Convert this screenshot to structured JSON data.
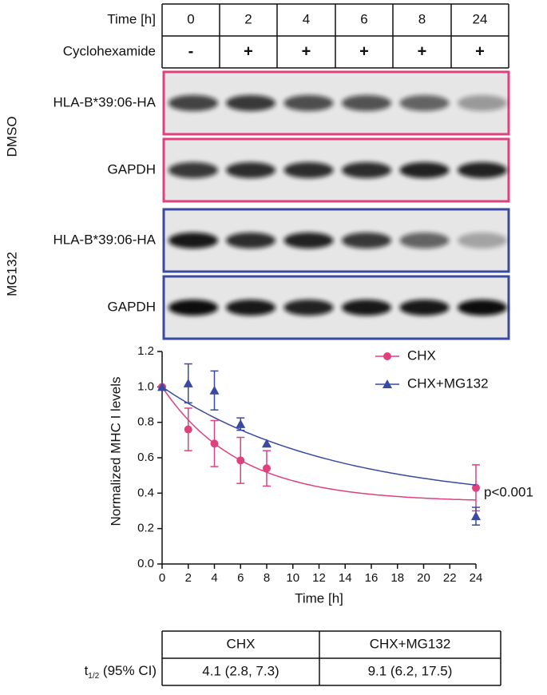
{
  "blot": {
    "time_label": "Time [h]",
    "times": [
      "0",
      "2",
      "4",
      "6",
      "8",
      "24"
    ],
    "treatment_label": "Cyclohexamide",
    "treatments": [
      "-",
      "+",
      "+",
      "+",
      "+",
      "+"
    ],
    "groups": [
      {
        "name": "DMSO",
        "rows": [
          "HLA-B*39:06-HA",
          "GAPDH"
        ]
      },
      {
        "name": "MG132",
        "rows": [
          "HLA-B*39:06-HA",
          "GAPDH"
        ]
      }
    ]
  },
  "chart_data": {
    "type": "scatter",
    "xlabel": "Time [h]",
    "ylabel": "Normalized MHC I levels",
    "x": [
      0,
      2,
      4,
      6,
      8,
      24
    ],
    "series": [
      {
        "name": "CHX",
        "color": "#e0407e",
        "marker": "circle",
        "values": [
          1.0,
          0.76,
          0.68,
          0.585,
          0.54,
          0.43
        ],
        "errors": [
          null,
          0.12,
          0.13,
          0.13,
          0.1,
          0.13
        ],
        "fit_half_life": 4.1,
        "fit_plateau": 0.35
      },
      {
        "name": "CHX+MG132",
        "color": "#3a4aa0",
        "marker": "triangle",
        "values": [
          1.0,
          1.02,
          0.98,
          0.79,
          0.68,
          0.27
        ],
        "errors": [
          null,
          0.11,
          0.11,
          0.035,
          null,
          0.05
        ],
        "fit_half_life": 9.1,
        "fit_plateau": 0.34
      }
    ],
    "xlim": [
      0,
      24
    ],
    "xticks": [
      0,
      2,
      4,
      6,
      8,
      10,
      12,
      14,
      16,
      18,
      20,
      22,
      24
    ],
    "ylim": [
      0,
      1.2
    ],
    "yticks": [
      {
        "value": 0,
        "label": "0.0"
      },
      {
        "value": 0.2,
        "label": "0.2"
      },
      {
        "value": 0.4,
        "label": "0.4"
      },
      {
        "value": 0.6,
        "label": "0.6"
      },
      {
        "value": 0.8,
        "label": "0.8"
      },
      {
        "value": 1,
        "label": "1.0"
      },
      {
        "value": 1.2,
        "label": "1.2"
      }
    ],
    "annotation": "p<0.001",
    "legend": "upper right"
  },
  "table": {
    "header": [
      "CHX",
      "CHX+MG132"
    ],
    "row_label": {
      "main": "t",
      "sub": "1/2",
      "rest": " (95% CI)"
    },
    "cells": [
      "4.1 (2.8, 7.3)",
      "9.1 (6.2, 17.5)"
    ]
  }
}
